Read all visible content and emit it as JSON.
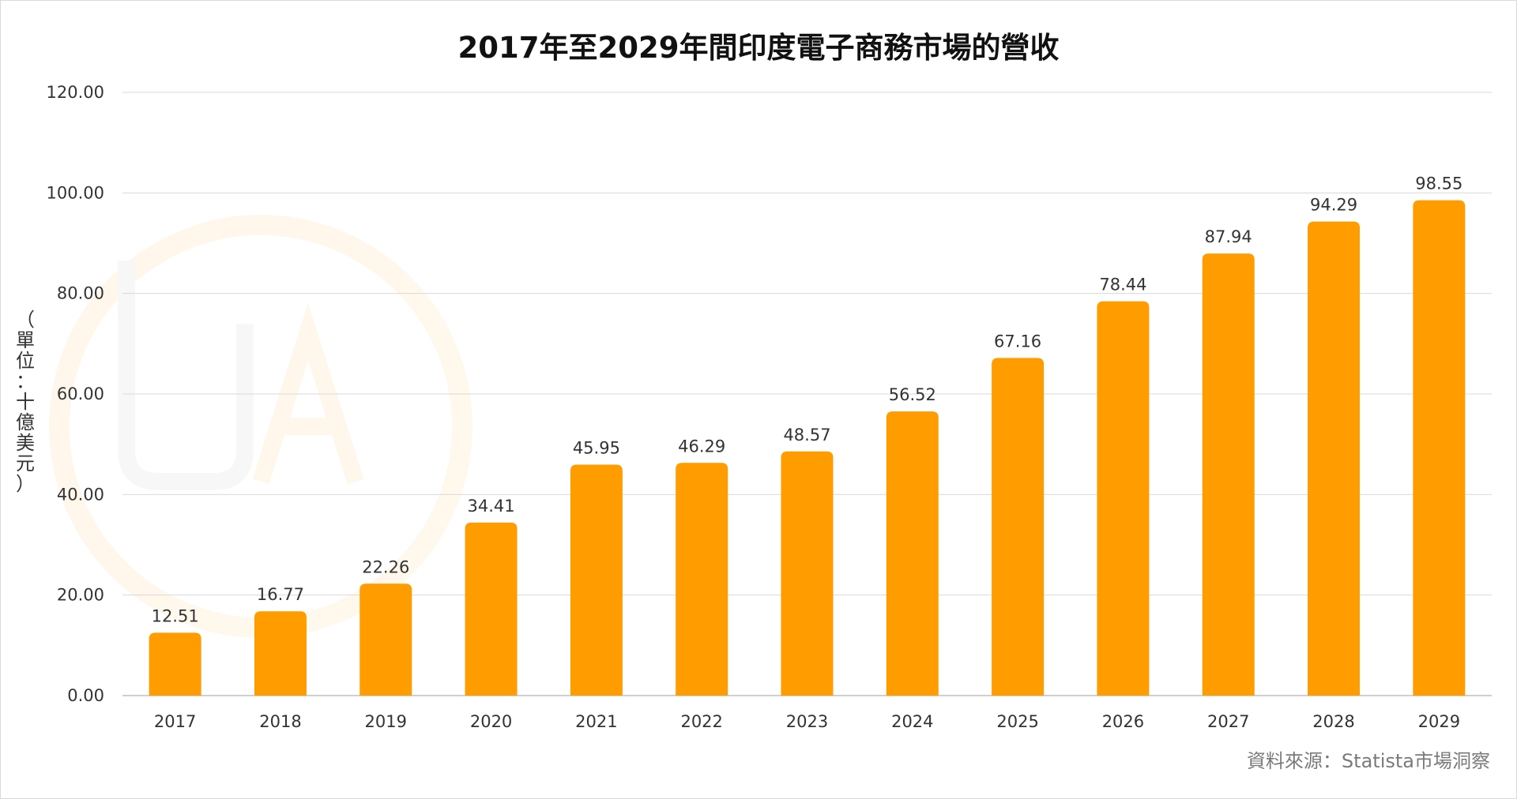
{
  "chart_data": {
    "type": "bar",
    "title": "2017年至2029年間印度電子商務市場的營收",
    "ylabel": "（單位：十億美元）",
    "categories": [
      "2017",
      "2018",
      "2019",
      "2020",
      "2021",
      "2022",
      "2023",
      "2024",
      "2025",
      "2026",
      "2027",
      "2028",
      "2029"
    ],
    "series": [
      {
        "values": [
          12.51,
          16.77,
          22.26,
          34.41,
          45.95,
          46.29,
          48.57,
          56.52,
          67.16,
          78.44,
          87.94,
          94.29,
          98.55
        ]
      }
    ],
    "value_labels": [
      "12.51",
      "16.77",
      "22.26",
      "34.41",
      "45.95",
      "46.29",
      "48.57",
      "56.52",
      "67.16",
      "78.44",
      "87.94",
      "94.29",
      "98.55"
    ],
    "yticks": [
      "0.00",
      "20.00",
      "40.00",
      "60.00",
      "80.00",
      "100.00",
      "120.00"
    ],
    "ylim": [
      0,
      120
    ],
    "grid": true,
    "bar_color": "#FF9C00",
    "source": "資料來源：Statista市場洞察"
  }
}
